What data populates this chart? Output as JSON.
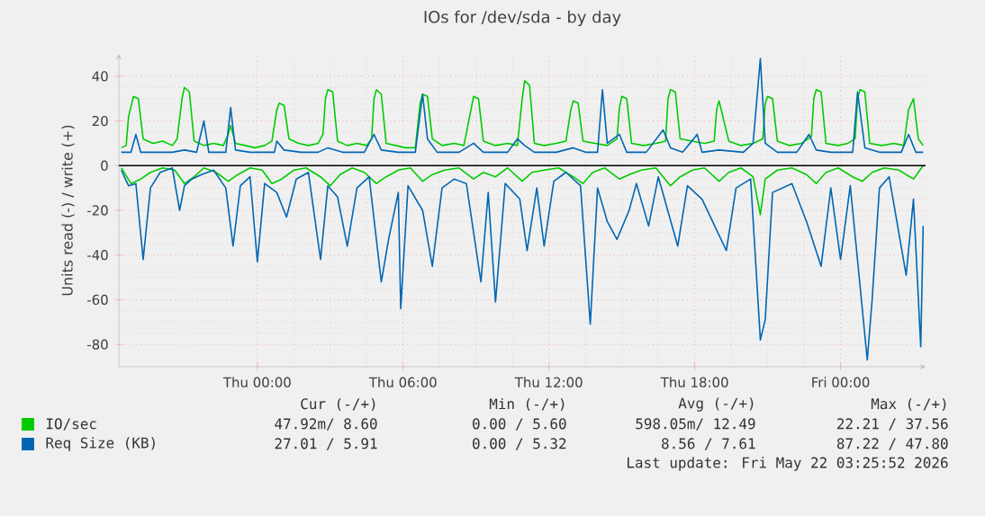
{
  "chart_data": {
    "type": "line",
    "title": "IOs for /dev/sda - by day",
    "ylabel": "Units read (-) / write (+)",
    "xlim": [
      "2026-05-20T18:18",
      "2026-05-22T03:30"
    ],
    "ylim": [
      -90,
      50
    ],
    "xticks": [
      {
        "value": "2026-05-21T00:00",
        "label": "Thu 00:00"
      },
      {
        "value": "2026-05-21T06:00",
        "label": "Thu 06:00"
      },
      {
        "value": "2026-05-21T12:00",
        "label": "Thu 12:00"
      },
      {
        "value": "2026-05-21T18:00",
        "label": "Thu 18:00"
      },
      {
        "value": "2026-05-22T00:00",
        "label": "Fri 00:00"
      }
    ],
    "yticks": [
      -80,
      -60,
      -40,
      -20,
      0,
      20,
      40
    ],
    "grid": true,
    "legend": "bottom",
    "marker": "none",
    "line_style": "solid",
    "ref_lines": [
      {
        "axis": "y",
        "value": 0,
        "color": "#000000"
      }
    ],
    "series": [
      {
        "name": "IO/sec",
        "color": "#00cc00",
        "x": [
          "2026-05-20T18:24",
          "2026-05-20T18:36",
          "2026-05-20T18:42",
          "2026-05-20T18:54",
          "2026-05-20T19:06",
          "2026-05-20T19:18",
          "2026-05-20T19:42",
          "2026-05-20T20:06",
          "2026-05-20T20:30",
          "2026-05-20T20:42",
          "2026-05-20T20:54",
          "2026-05-20T21:00",
          "2026-05-20T21:12",
          "2026-05-20T21:24",
          "2026-05-20T21:48",
          "2026-05-20T22:12",
          "2026-05-20T22:36",
          "2026-05-20T22:48",
          "2026-05-20T22:54",
          "2026-05-20T23:06",
          "2026-05-20T23:30",
          "2026-05-20T23:54",
          "2026-05-21T00:18",
          "2026-05-21T00:36",
          "2026-05-21T00:48",
          "2026-05-21T00:54",
          "2026-05-21T01:06",
          "2026-05-21T01:18",
          "2026-05-21T01:42",
          "2026-05-21T02:06",
          "2026-05-21T02:30",
          "2026-05-21T02:42",
          "2026-05-21T02:48",
          "2026-05-21T02:54",
          "2026-05-21T03:06",
          "2026-05-21T03:18",
          "2026-05-21T03:42",
          "2026-05-21T04:06",
          "2026-05-21T04:30",
          "2026-05-21T04:42",
          "2026-05-21T04:48",
          "2026-05-21T04:54",
          "2026-05-21T05:06",
          "2026-05-21T05:18",
          "2026-05-21T05:42",
          "2026-05-21T06:06",
          "2026-05-21T06:30",
          "2026-05-21T06:42",
          "2026-05-21T06:48",
          "2026-05-21T07:00",
          "2026-05-21T07:12",
          "2026-05-21T07:36",
          "2026-05-21T08:06",
          "2026-05-21T08:30",
          "2026-05-21T08:42",
          "2026-05-21T08:54",
          "2026-05-21T09:06",
          "2026-05-21T09:18",
          "2026-05-21T09:48",
          "2026-05-21T10:18",
          "2026-05-21T10:42",
          "2026-05-21T10:54",
          "2026-05-21T11:00",
          "2026-05-21T11:12",
          "2026-05-21T11:24",
          "2026-05-21T11:48",
          "2026-05-21T12:18",
          "2026-05-21T12:42",
          "2026-05-21T12:54",
          "2026-05-21T13:00",
          "2026-05-21T13:12",
          "2026-05-21T13:24",
          "2026-05-21T13:54",
          "2026-05-21T14:24",
          "2026-05-21T14:48",
          "2026-05-21T14:54",
          "2026-05-21T15:00",
          "2026-05-21T15:12",
          "2026-05-21T15:24",
          "2026-05-21T15:54",
          "2026-05-21T16:24",
          "2026-05-21T16:48",
          "2026-05-21T16:54",
          "2026-05-21T17:00",
          "2026-05-21T17:12",
          "2026-05-21T17:24",
          "2026-05-21T17:54",
          "2026-05-21T18:24",
          "2026-05-21T18:48",
          "2026-05-21T18:54",
          "2026-05-21T19:00",
          "2026-05-21T19:12",
          "2026-05-21T19:24",
          "2026-05-21T19:54",
          "2026-05-21T20:24",
          "2026-05-21T20:48",
          "2026-05-21T20:54",
          "2026-05-21T21:00",
          "2026-05-21T21:12",
          "2026-05-21T21:24",
          "2026-05-21T21:54",
          "2026-05-21T22:24",
          "2026-05-21T22:48",
          "2026-05-21T22:54",
          "2026-05-21T23:00",
          "2026-05-21T23:12",
          "2026-05-21T23:24",
          "2026-05-21T23:54",
          "2026-05-22T00:18",
          "2026-05-22T00:36",
          "2026-05-22T00:42",
          "2026-05-22T00:48",
          "2026-05-22T01:00",
          "2026-05-22T01:12",
          "2026-05-22T01:42",
          "2026-05-22T02:12",
          "2026-05-22T02:36",
          "2026-05-22T02:48",
          "2026-05-22T03:00",
          "2026-05-22T03:12",
          "2026-05-22T03:24"
        ],
        "values": [
          8,
          9,
          22,
          31,
          30,
          12,
          10,
          11,
          9,
          12,
          30,
          35,
          33,
          11,
          9,
          10,
          9,
          14,
          18,
          10,
          9,
          8,
          9,
          11,
          25,
          28,
          27,
          12,
          10,
          9,
          10,
          14,
          30,
          34,
          33,
          11,
          9,
          10,
          9,
          12,
          30,
          34,
          32,
          10,
          9,
          8,
          8,
          28,
          32,
          31,
          12,
          9,
          10,
          9,
          20,
          31,
          30,
          11,
          9,
          10,
          9,
          30,
          38,
          36,
          10,
          9,
          10,
          11,
          25,
          29,
          28,
          11,
          10,
          9,
          12,
          26,
          31,
          30,
          10,
          9,
          10,
          11,
          30,
          34,
          33,
          12,
          11,
          10,
          11,
          25,
          29,
          20,
          11,
          9,
          10,
          12,
          28,
          31,
          30,
          11,
          9,
          10,
          13,
          30,
          34,
          33,
          10,
          9,
          10,
          12,
          30,
          34,
          33,
          10,
          9,
          10,
          9,
          25,
          30,
          12,
          9
        ]
      },
      {
        "color": "#00cc00",
        "x": [
          "2026-05-20T18:24",
          "2026-05-20T18:48",
          "2026-05-20T19:12",
          "2026-05-20T19:36",
          "2026-05-20T20:06",
          "2026-05-20T20:36",
          "2026-05-20T21:00",
          "2026-05-20T21:24",
          "2026-05-20T21:48",
          "2026-05-20T22:18",
          "2026-05-20T22:48",
          "2026-05-20T23:12",
          "2026-05-20T23:42",
          "2026-05-21T00:12",
          "2026-05-21T00:36",
          "2026-05-21T01:00",
          "2026-05-21T01:30",
          "2026-05-21T02:00",
          "2026-05-21T02:36",
          "2026-05-21T03:00",
          "2026-05-21T03:24",
          "2026-05-21T03:54",
          "2026-05-21T04:24",
          "2026-05-21T04:54",
          "2026-05-21T05:18",
          "2026-05-21T05:48",
          "2026-05-21T06:18",
          "2026-05-21T06:48",
          "2026-05-21T07:12",
          "2026-05-21T07:42",
          "2026-05-21T08:18",
          "2026-05-21T08:54",
          "2026-05-21T09:18",
          "2026-05-21T09:48",
          "2026-05-21T10:18",
          "2026-05-21T10:54",
          "2026-05-21T11:18",
          "2026-05-21T11:48",
          "2026-05-21T12:24",
          "2026-05-21T13:00",
          "2026-05-21T13:24",
          "2026-05-21T13:48",
          "2026-05-21T14:18",
          "2026-05-21T14:54",
          "2026-05-21T15:18",
          "2026-05-21T15:48",
          "2026-05-21T16:24",
          "2026-05-21T17:00",
          "2026-05-21T17:24",
          "2026-05-21T17:54",
          "2026-05-21T18:24",
          "2026-05-21T19:00",
          "2026-05-21T19:24",
          "2026-05-21T19:54",
          "2026-05-21T20:24",
          "2026-05-21T20:42",
          "2026-05-21T20:54",
          "2026-05-21T21:24",
          "2026-05-21T22:00",
          "2026-05-21T22:36",
          "2026-05-21T23:00",
          "2026-05-21T23:24",
          "2026-05-21T23:54",
          "2026-05-22T00:30",
          "2026-05-22T00:54",
          "2026-05-22T01:18",
          "2026-05-22T01:48",
          "2026-05-22T02:24",
          "2026-05-22T03:00",
          "2026-05-22T03:24"
        ],
        "values": [
          -1,
          -8,
          -6,
          -3,
          -1,
          -2,
          -8,
          -5,
          -1,
          -3,
          -7,
          -4,
          -1,
          -2,
          -8,
          -6,
          -2,
          -1,
          -5,
          -9,
          -4,
          -1,
          -3,
          -8,
          -5,
          -2,
          -1,
          -7,
          -4,
          -2,
          -1,
          -6,
          -3,
          -5,
          -1,
          -7,
          -3,
          -2,
          -1,
          -5,
          -8,
          -3,
          -1,
          -6,
          -4,
          -2,
          -1,
          -9,
          -5,
          -2,
          -1,
          -7,
          -3,
          -1,
          -5,
          -22,
          -6,
          -2,
          -1,
          -4,
          -8,
          -3,
          -1,
          -5,
          -7,
          -3,
          -1,
          -2,
          -6,
          0
        ]
      },
      {
        "name": "Req Size (KB)",
        "color": "#0066b3",
        "x": [
          "2026-05-20T18:24",
          "2026-05-20T18:48",
          "2026-05-20T19:00",
          "2026-05-20T19:12",
          "2026-05-20T19:42",
          "2026-05-20T20:30",
          "2026-05-20T21:00",
          "2026-05-20T21:30",
          "2026-05-20T21:48",
          "2026-05-20T22:00",
          "2026-05-20T22:42",
          "2026-05-20T22:54",
          "2026-05-20T23:06",
          "2026-05-20T23:42",
          "2026-05-21T00:42",
          "2026-05-21T00:48",
          "2026-05-21T01:06",
          "2026-05-21T01:48",
          "2026-05-21T02:30",
          "2026-05-21T02:54",
          "2026-05-21T03:30",
          "2026-05-21T04:24",
          "2026-05-21T04:48",
          "2026-05-21T05:06",
          "2026-05-21T05:48",
          "2026-05-21T06:30",
          "2026-05-21T06:48",
          "2026-05-21T07:00",
          "2026-05-21T07:24",
          "2026-05-21T08:18",
          "2026-05-21T08:54",
          "2026-05-21T09:18",
          "2026-05-21T10:18",
          "2026-05-21T10:42",
          "2026-05-21T11:00",
          "2026-05-21T11:24",
          "2026-05-21T12:18",
          "2026-05-21T13:00",
          "2026-05-21T13:30",
          "2026-05-21T14:00",
          "2026-05-21T14:12",
          "2026-05-21T14:24",
          "2026-05-21T14:54",
          "2026-05-21T15:12",
          "2026-05-21T16:00",
          "2026-05-21T16:42",
          "2026-05-21T17:00",
          "2026-05-21T17:30",
          "2026-05-21T18:06",
          "2026-05-21T18:18",
          "2026-05-21T19:00",
          "2026-05-21T20:00",
          "2026-05-21T20:24",
          "2026-05-21T20:42",
          "2026-05-21T20:54",
          "2026-05-21T21:24",
          "2026-05-21T22:12",
          "2026-05-21T22:42",
          "2026-05-21T23:00",
          "2026-05-21T23:36",
          "2026-05-22T00:30",
          "2026-05-22T00:42",
          "2026-05-22T01:00",
          "2026-05-22T01:36",
          "2026-05-22T02:30",
          "2026-05-22T02:48",
          "2026-05-22T03:06",
          "2026-05-22T03:24"
        ],
        "values": [
          6,
          6,
          14,
          6,
          6,
          6,
          7,
          6,
          20,
          6,
          6,
          26,
          7,
          6,
          6,
          11,
          7,
          6,
          6,
          8,
          6,
          6,
          14,
          7,
          6,
          6,
          32,
          12,
          6,
          6,
          10,
          6,
          6,
          12,
          9,
          6,
          6,
          8,
          6,
          6,
          34,
          10,
          14,
          6,
          6,
          16,
          8,
          6,
          14,
          6,
          7,
          6,
          10,
          48,
          10,
          6,
          6,
          14,
          7,
          6,
          6,
          33,
          8,
          6,
          6,
          14,
          6,
          6
        ]
      },
      {
        "color": "#0066b3",
        "x": [
          "2026-05-20T18:24",
          "2026-05-20T18:42",
          "2026-05-20T19:00",
          "2026-05-20T19:18",
          "2026-05-20T19:36",
          "2026-05-20T20:00",
          "2026-05-20T20:30",
          "2026-05-20T20:48",
          "2026-05-20T21:00",
          "2026-05-20T21:18",
          "2026-05-20T21:42",
          "2026-05-20T22:12",
          "2026-05-20T22:42",
          "2026-05-20T23:00",
          "2026-05-20T23:18",
          "2026-05-20T23:42",
          "2026-05-21T00:00",
          "2026-05-21T00:18",
          "2026-05-21T00:48",
          "2026-05-21T01:12",
          "2026-05-21T01:36",
          "2026-05-21T02:06",
          "2026-05-21T02:36",
          "2026-05-21T02:54",
          "2026-05-21T03:18",
          "2026-05-21T03:42",
          "2026-05-21T04:06",
          "2026-05-21T04:36",
          "2026-05-21T05:06",
          "2026-05-21T05:24",
          "2026-05-21T05:48",
          "2026-05-21T05:54",
          "2026-05-21T06:12",
          "2026-05-21T06:48",
          "2026-05-21T07:12",
          "2026-05-21T07:36",
          "2026-05-21T08:06",
          "2026-05-21T08:36",
          "2026-05-21T09:12",
          "2026-05-21T09:30",
          "2026-05-21T09:48",
          "2026-05-21T10:12",
          "2026-05-21T10:48",
          "2026-05-21T11:06",
          "2026-05-21T11:30",
          "2026-05-21T11:48",
          "2026-05-21T12:12",
          "2026-05-21T12:42",
          "2026-05-21T13:18",
          "2026-05-21T13:42",
          "2026-05-21T14:00",
          "2026-05-21T14:24",
          "2026-05-21T14:48",
          "2026-05-21T15:18",
          "2026-05-21T15:36",
          "2026-05-21T16:06",
          "2026-05-21T16:30",
          "2026-05-21T17:18",
          "2026-05-21T17:42",
          "2026-05-21T18:18",
          "2026-05-21T19:18",
          "2026-05-21T19:42",
          "2026-05-21T20:18",
          "2026-05-21T20:42",
          "2026-05-21T20:54",
          "2026-05-21T21:12",
          "2026-05-21T22:00",
          "2026-05-21T22:36",
          "2026-05-21T23:12",
          "2026-05-21T23:36",
          "2026-05-22T00:00",
          "2026-05-22T00:24",
          "2026-05-22T01:06",
          "2026-05-22T01:18",
          "2026-05-22T01:36",
          "2026-05-22T02:00",
          "2026-05-22T02:42",
          "2026-05-22T03:00",
          "2026-05-22T03:18",
          "2026-05-22T03:24"
        ],
        "values": [
          -2,
          -9,
          -8,
          -42,
          -10,
          -3,
          -1,
          -20,
          -9,
          -6,
          -4,
          -2,
          -10,
          -36,
          -9,
          -5,
          -43,
          -8,
          -12,
          -23,
          -6,
          -3,
          -42,
          -9,
          -14,
          -36,
          -10,
          -5,
          -52,
          -33,
          -12,
          -64,
          -9,
          -20,
          -45,
          -10,
          -6,
          -8,
          -52,
          -12,
          -61,
          -8,
          -15,
          -38,
          -10,
          -36,
          -7,
          -3,
          -9,
          -71,
          -10,
          -25,
          -33,
          -20,
          -8,
          -27,
          -5,
          -36,
          -9,
          -15,
          -38,
          -10,
          -6,
          -78,
          -69,
          -12,
          -8,
          -25,
          -45,
          -10,
          -42,
          -9,
          -87,
          -60,
          -10,
          -5,
          -49,
          -15,
          -81,
          -27
        ]
      }
    ],
    "annotations": [
      "Cur (-/+)",
      "Min (-/+)",
      "Avg (-/+)",
      "Max (-/+)",
      "47.92m/  8.60",
      "0.00 /  5.60",
      "598.05m/ 12.49",
      "22.21 / 37.56",
      "27.01 /  5.91",
      "0.00 /  5.32",
      "8.56 /  7.61",
      "87.22 / 47.80",
      "Last update: Fri May 22 03:25:52 2026"
    ]
  }
}
